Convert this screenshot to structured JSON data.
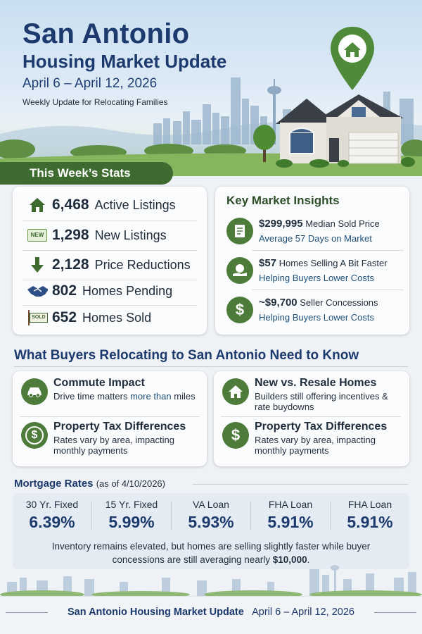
{
  "header": {
    "title": "San Antonio",
    "subtitle": "Housing Market Update",
    "dates": "April 6 – April 12, 2026",
    "tagline": "Weekly Update for Relocating Families"
  },
  "stats": {
    "heading": "This Week’s Stats",
    "items": [
      {
        "icon": "house-icon",
        "value": "6,468",
        "label": "Active Listings"
      },
      {
        "icon": "new-badge-icon",
        "value": "1,298",
        "label": "New Listings"
      },
      {
        "icon": "down-arrow-icon",
        "value": "2,128",
        "label": "Price Reductions"
      },
      {
        "icon": "handshake-icon",
        "value": "802",
        "label": "Homes Pending"
      },
      {
        "icon": "sold-sign-icon",
        "value": "652",
        "label": "Homes Sold"
      }
    ],
    "new_badge_text": "NEW",
    "sold_badge_text": "SOLD"
  },
  "insights": {
    "heading": "Key Market Insights",
    "items": [
      {
        "icon": "document-icon",
        "value": "$299,995",
        "text": "Median Sold Price",
        "sub": "Average 57 Days on Market"
      },
      {
        "icon": "money-hand-icon",
        "value": "$57",
        "text": "Homes Selling A Bit Faster",
        "sub": "Helping Buyers Lower Costs"
      },
      {
        "icon": "dollar-icon",
        "value": "~$9,700",
        "text": "Seller Concessions",
        "sub": "Helping Buyers Lower Costs"
      }
    ]
  },
  "buyers": {
    "heading": "What Buyers Relocating to San Antonio Need to Know",
    "left": [
      {
        "icon": "car-icon",
        "title": "Commute Impact",
        "desc": "Drive time matters",
        "desc_accent": "more than",
        "desc_end": "miles"
      },
      {
        "icon": "dollar-icon",
        "title": "Property Tax Differences",
        "desc": "Rates vary by area, impacting monthly payments"
      }
    ],
    "right": [
      {
        "icon": "house-icon",
        "title": "New vs. Resale Homes",
        "desc": "Builders still offering incentives & rate buydowns"
      },
      {
        "icon": "dollar-icon",
        "title": "Property Tax Differences",
        "desc": "Rates vary by area, impacting monthly payments"
      }
    ]
  },
  "mortgage": {
    "heading": "Mortgage Rates",
    "as_of": "(as of 4/10/2026)",
    "rates": [
      {
        "name": "30 Yr. Fixed",
        "value": "6.39%"
      },
      {
        "name": "15 Yr. Fixed",
        "value": "5.99%"
      },
      {
        "name": "VA Loan",
        "value": "5.93%"
      },
      {
        "name": "FHA Loan",
        "value": "5.91%"
      },
      {
        "name": "FHA Loan",
        "value": "5.91%"
      }
    ],
    "summary_part1": "Inventory remains elevated, but homes are selling slightly faster while buyer",
    "summary_part2": "concessions are still averaging nearly",
    "summary_bold": "$10,000",
    "summary_end": "."
  },
  "footer": {
    "title": "San Antonio Housing Market Update",
    "dates": "April 6 – April 12, 2026"
  },
  "colors": {
    "navy": "#1d3a6e",
    "green": "#3e6b2f",
    "icon_green": "#4d7b3a"
  }
}
